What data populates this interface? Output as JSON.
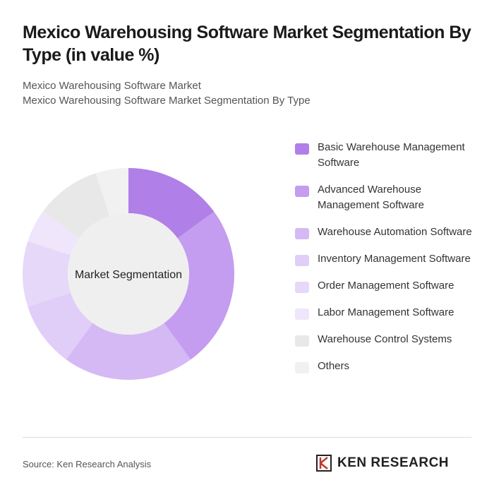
{
  "chart_data": {
    "type": "donut",
    "title": "Mexico Warehousing Software Market Segmentation By Type (in value %)",
    "subtitle": [
      "Mexico Warehousing Software Market",
      "Mexico Warehousing Software Market Segmentation By Type"
    ],
    "center_label": "Market Segmentation",
    "categories": [
      "Basic Warehouse Management Software",
      "Advanced Warehouse Management Software",
      "Warehouse Automation Software",
      "Inventory Management Software",
      "Order Management Software",
      "Labor Management Software",
      "Warehouse Control Systems",
      "Others"
    ],
    "values": [
      15,
      25,
      20,
      10,
      10,
      5,
      10,
      5
    ],
    "colors": [
      "#b07fe8",
      "#c49cf0",
      "#d5b9f5",
      "#e0cdf8",
      "#e6d8f9",
      "#efe6fb",
      "#e8e8e8",
      "#f1f1f1"
    ],
    "legend": "right"
  },
  "footer": {
    "source": "Source: Ken Research Analysis",
    "logo": "KEN RESEARCH"
  }
}
